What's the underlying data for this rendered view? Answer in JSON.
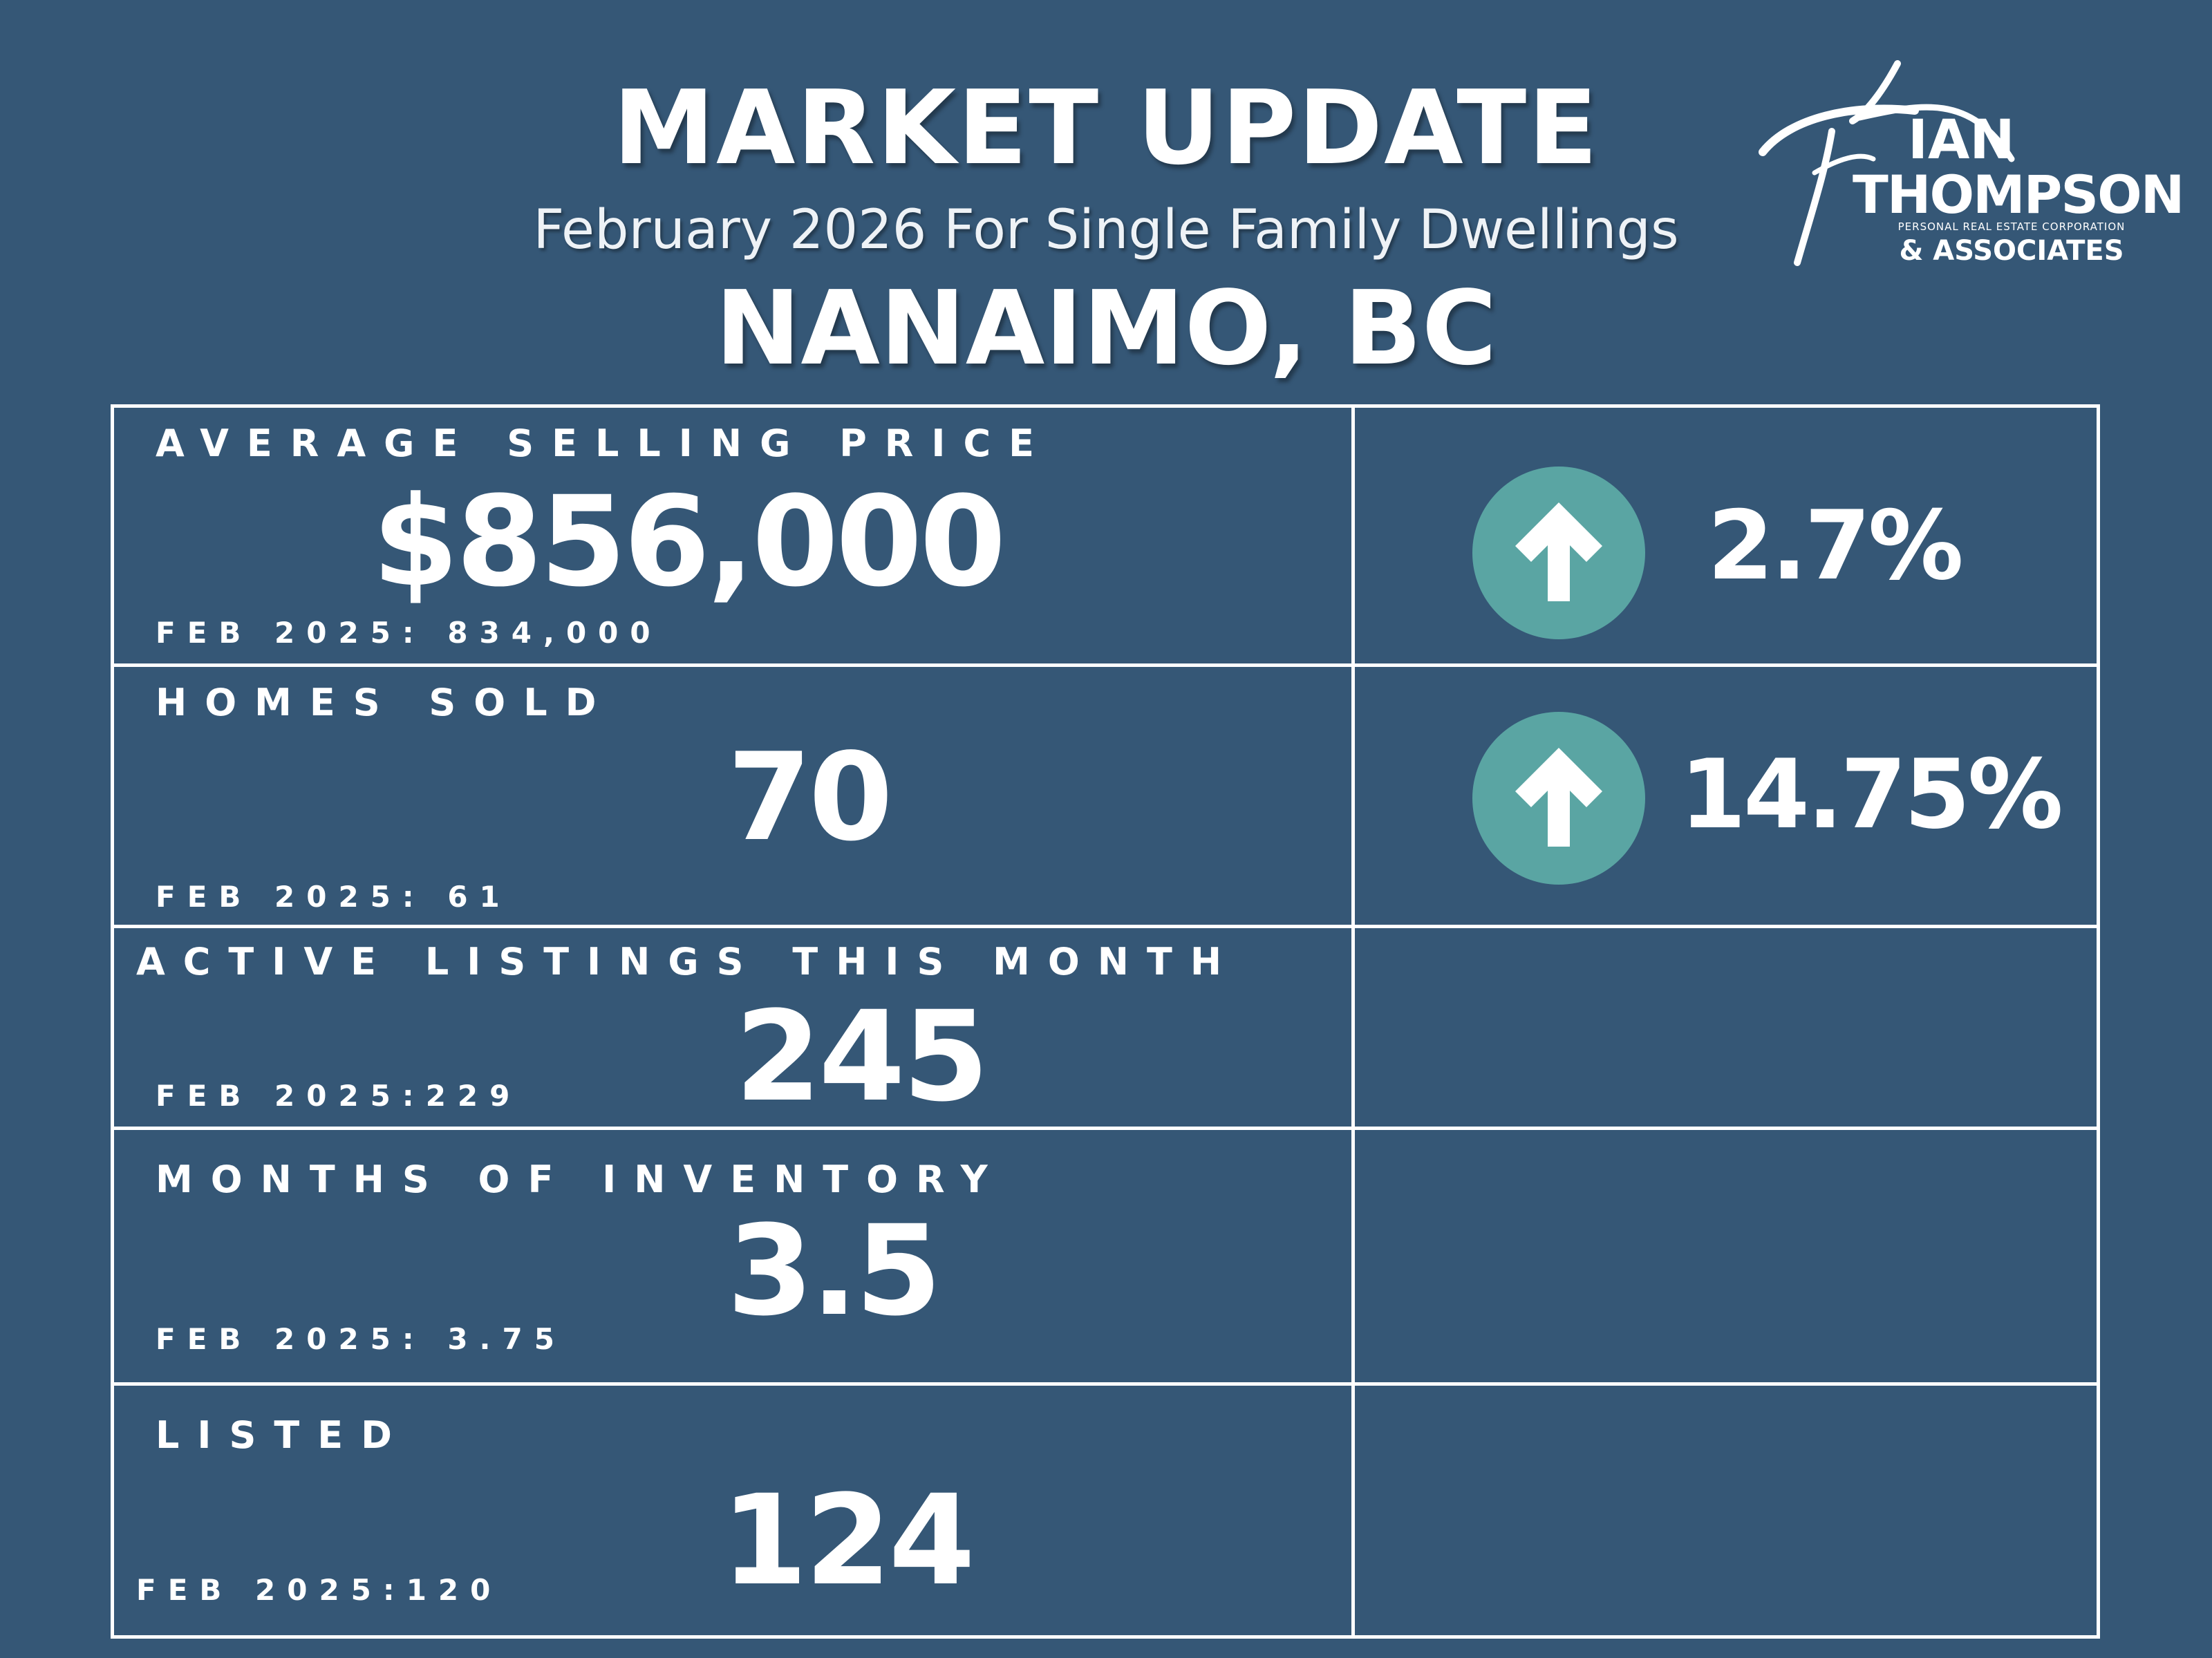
{
  "header": {
    "title": "MARKET UPDATE",
    "subtitle": "February 2026 For Single Family Dwellings",
    "location": "NANAIMO, BC"
  },
  "logo": {
    "name_first": "IAN",
    "name_last": "THOMPSON",
    "corporation": "PERSONAL REAL ESTATE CORPORATION",
    "associates": "& ASSOCIATES",
    "icon": "stylized-figure-roof-icon"
  },
  "metrics": [
    {
      "label": "AVERAGE SELLING PRICE",
      "value": "$856,000",
      "previous": "FEB 2025: 834,000",
      "change": "2.7%",
      "change_direction": "up"
    },
    {
      "label": "HOMES SOLD",
      "value": "70",
      "previous": "FEB 2025: 61",
      "change": "14.75%",
      "change_direction": "up"
    },
    {
      "label": "ACTIVE LISTINGS THIS MONTH",
      "value": "245",
      "previous": "FEB 2025:229"
    },
    {
      "label": "MONTHS OF INVENTORY",
      "value": "3.5",
      "previous": "FEB 2025: 3.75"
    },
    {
      "label": "LISTED",
      "value": "124",
      "previous": "FEB 2025:120"
    }
  ],
  "colors": {
    "background": "#355776",
    "accent": "#5aa5a3",
    "text": "#ffffff"
  },
  "icons": {
    "change_indicator": "arrow-up-icon"
  }
}
